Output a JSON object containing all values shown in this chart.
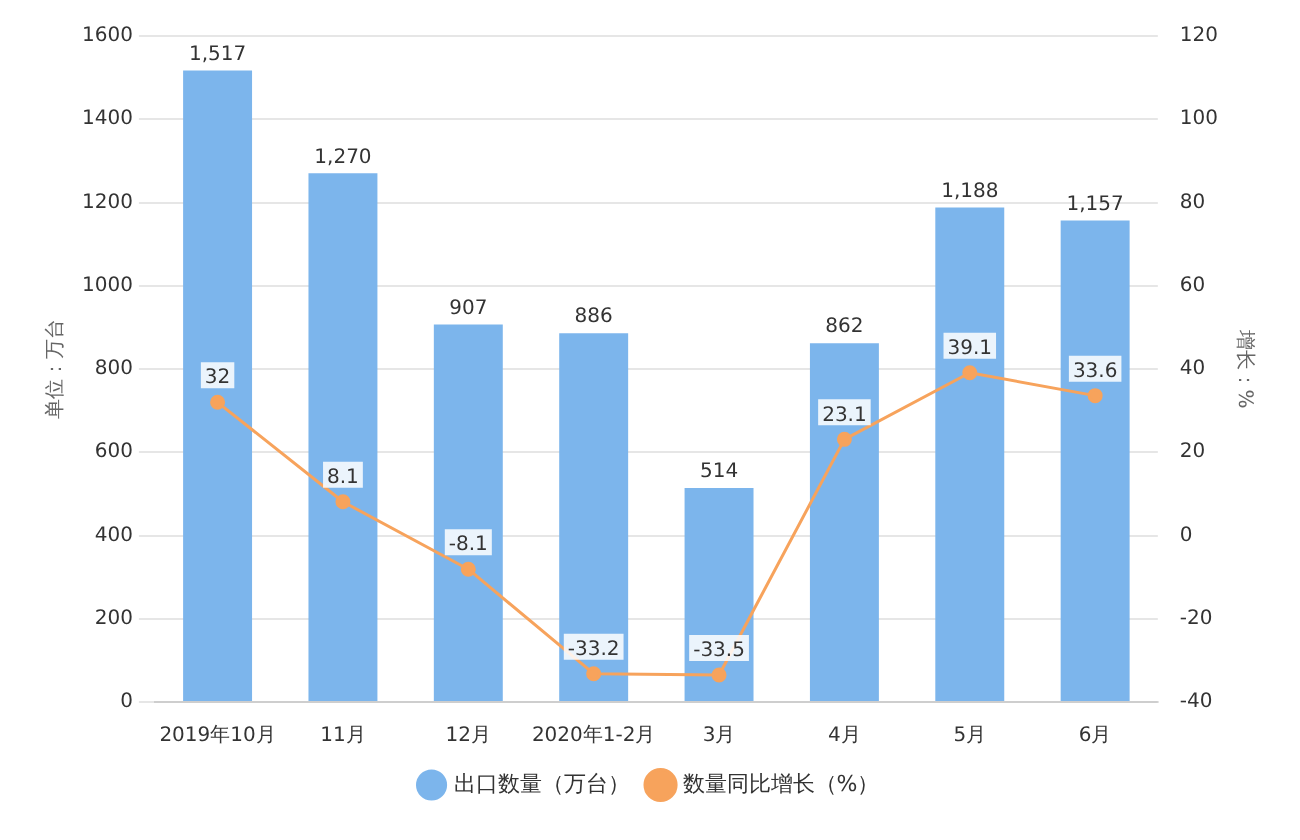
{
  "chart_data": {
    "type": "bar",
    "categories": [
      "2019年10月",
      "11月",
      "12月",
      "2020年1-2月",
      "3月",
      "4月",
      "5月",
      "6月"
    ],
    "series": [
      {
        "name": "出口数量（万台）",
        "color": "#7cb5ec",
        "values": [
          1517,
          1270,
          907,
          886,
          514,
          862,
          1188,
          1157
        ],
        "value_labels": [
          "1,517",
          "1,270",
          "907",
          "886",
          "514",
          "862",
          "1,188",
          "1,157"
        ]
      },
      {
        "name": "数量同比增长（%）",
        "type": "line",
        "axis": "y2",
        "color": "#f7a35c",
        "values": [
          32,
          8.1,
          -8.1,
          -33.2,
          -33.5,
          23.1,
          39.1,
          33.6
        ],
        "value_labels": [
          "32",
          "8.1",
          "-8.1",
          "-33.2",
          "-33.5",
          "23.1",
          "39.1",
          "33.6"
        ]
      }
    ],
    "ylabel": "单位：万台",
    "y2label": "增长：%",
    "ylim": [
      0,
      1600
    ],
    "yticks": [
      0,
      200,
      400,
      600,
      800,
      1000,
      1200,
      1400,
      1600
    ],
    "y2lim": [
      -40,
      120
    ],
    "y2ticks": [
      -40,
      -20,
      0,
      20,
      40,
      60,
      80,
      100,
      120
    ],
    "grid": "y",
    "legend": "bottom",
    "marker": "circle",
    "line_style": "solid"
  }
}
